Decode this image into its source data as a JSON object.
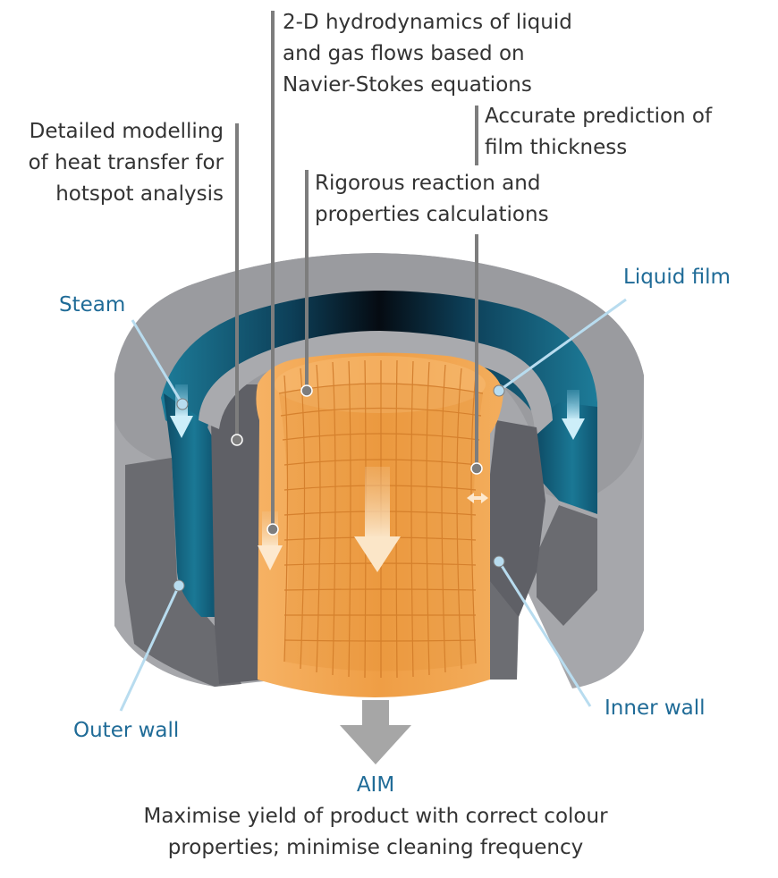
{
  "annotations": {
    "hydrodynamics": [
      "2-D hydrodynamics of liquid",
      "and gas flows based on",
      "Navier-Stokes equations"
    ],
    "film_thickness": [
      "Accurate prediction of",
      "film thickness"
    ],
    "heat_transfer": [
      "Detailed modelling",
      "of heat transfer for",
      "hotspot analysis"
    ],
    "reaction": [
      "Rigorous reaction and",
      "properties calculations"
    ]
  },
  "parts": {
    "steam": "Steam",
    "liquid_film": "Liquid film",
    "outer_wall": "Outer wall",
    "inner_wall": "Inner wall"
  },
  "aim": {
    "title": "AIM",
    "lines": [
      "Maximise yield of product  with correct colour",
      "properties; minimise cleaning frequency"
    ]
  },
  "colors": {
    "text": "#333333",
    "label_blue": "#1f6b97",
    "outer_wall": "#8e8f93",
    "steam_channel": "#1b6a86",
    "inner_wall": "#5f6066",
    "liquid_film": "#f0a24a",
    "leader_grey": "#7d7d7d",
    "leader_blue": "#b8dcef"
  }
}
